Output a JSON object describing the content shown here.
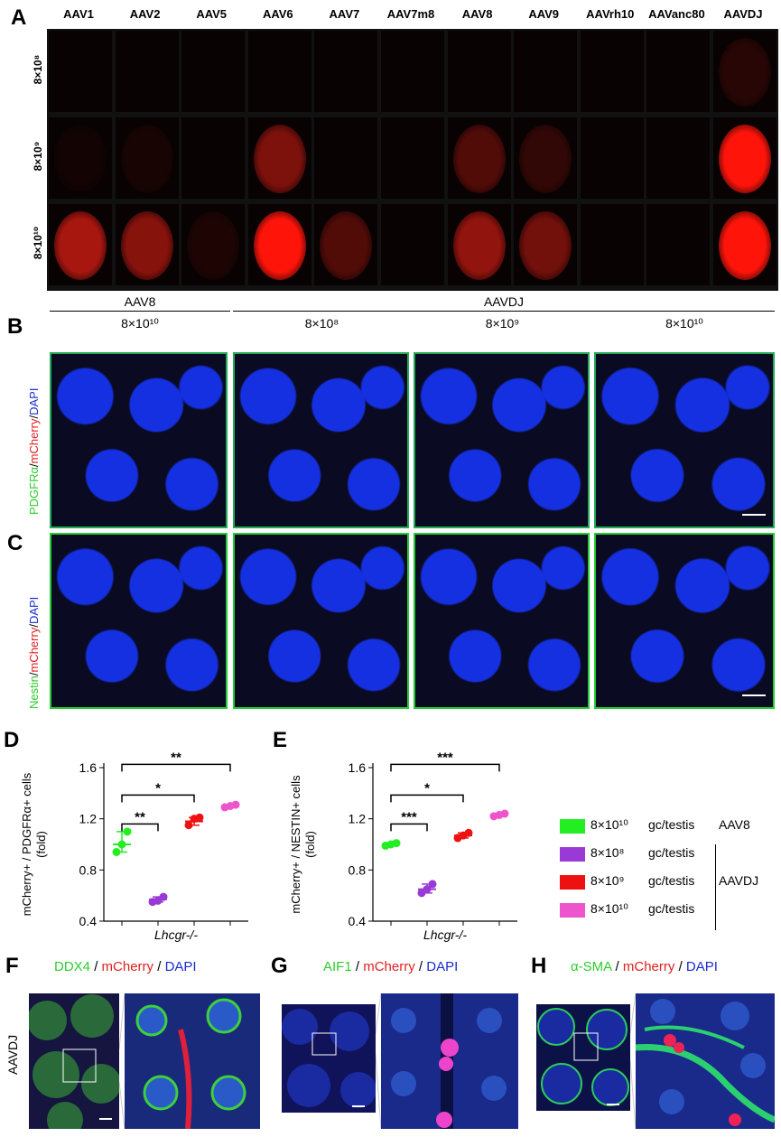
{
  "panels": {
    "A": "A",
    "B": "B",
    "C": "C",
    "D": "D",
    "E": "E",
    "F": "F",
    "G": "G",
    "H": "H"
  },
  "panelA": {
    "columns": [
      "AAV1",
      "AAV2",
      "AAV5",
      "AAV6",
      "AAV7",
      "AAV7m8",
      "AAV8",
      "AAV9",
      "AAVrh10",
      "AAVanc80",
      "AAVDJ"
    ],
    "rows": [
      "8×10⁸",
      "8×10⁹",
      "8×10¹⁰"
    ]
  },
  "panelB": {
    "group1": "AAV8",
    "group2": "AAVDJ",
    "doses": [
      "8×10¹⁰",
      "8×10⁸",
      "8×10⁹",
      "8×10¹⁰"
    ],
    "stain": {
      "green": "PDGFRα",
      "red": "mCherry",
      "blue": "DAPI"
    }
  },
  "panelC": {
    "stain": {
      "green": "Nestin",
      "red": "mCherry",
      "blue": "DAPI"
    }
  },
  "panelF": {
    "title": {
      "green": "DDX4",
      "red": "mCherry",
      "blue": "DAPI"
    },
    "row_label": "AAVDJ"
  },
  "panelG": {
    "title": {
      "green": "AIF1",
      "red": "mCherry",
      "blue": "DAPI"
    }
  },
  "panelH": {
    "title": {
      "green": "α-SMA",
      "red": "mCherry",
      "blue": "DAPI"
    }
  },
  "legend": {
    "items": [
      {
        "dose": "8×10¹⁰",
        "unit": "gc/testis",
        "color": "#22ee22"
      },
      {
        "dose": "8×10⁸",
        "unit": "gc/testis",
        "color": "#9a3ad6"
      },
      {
        "dose": "8×10⁹",
        "unit": "gc/testis",
        "color": "#ee1111"
      },
      {
        "dose": "8×10¹⁰",
        "unit": "gc/testis",
        "color": "#ee55cc"
      }
    ],
    "group_aav8": "AAV8",
    "group_aavdj": "AAVDJ"
  },
  "chart_data": [
    {
      "type": "scatter",
      "panel": "D",
      "ylabel": "mCherry+ / PDGFRα+ cells (fold)",
      "xlabel": "Lhcgr-/-",
      "ylim": [
        0.4,
        1.6
      ],
      "yticks": [
        "0.4",
        "0.8",
        "1.2",
        "1.6"
      ],
      "series": [
        {
          "points": [
            0.94,
            1.0,
            1.1
          ],
          "mean": 1.0
        },
        {
          "points": [
            0.55,
            0.56,
            0.59
          ],
          "mean": 0.57
        },
        {
          "points": [
            1.15,
            1.2,
            1.21
          ],
          "mean": 1.18
        },
        {
          "points": [
            1.29,
            1.3,
            1.31
          ],
          "mean": 1.3
        }
      ],
      "significance": [
        "**",
        "*",
        "**"
      ]
    },
    {
      "type": "scatter",
      "panel": "E",
      "ylabel": "mCherry+ / NESTIN+ cells (fold)",
      "xlabel": "Lhcgr-/-",
      "ylim": [
        0.4,
        1.6
      ],
      "yticks": [
        "0.4",
        "0.8",
        "1.2",
        "1.6"
      ],
      "series": [
        {
          "points": [
            0.99,
            1.0,
            1.01
          ],
          "mean": 1.0
        },
        {
          "points": [
            0.62,
            0.65,
            0.69
          ],
          "mean": 0.65
        },
        {
          "points": [
            1.05,
            1.07,
            1.09
          ],
          "mean": 1.07
        },
        {
          "points": [
            1.22,
            1.23,
            1.24
          ],
          "mean": 1.23
        }
      ],
      "significance": [
        "***",
        "*",
        "***"
      ]
    }
  ]
}
